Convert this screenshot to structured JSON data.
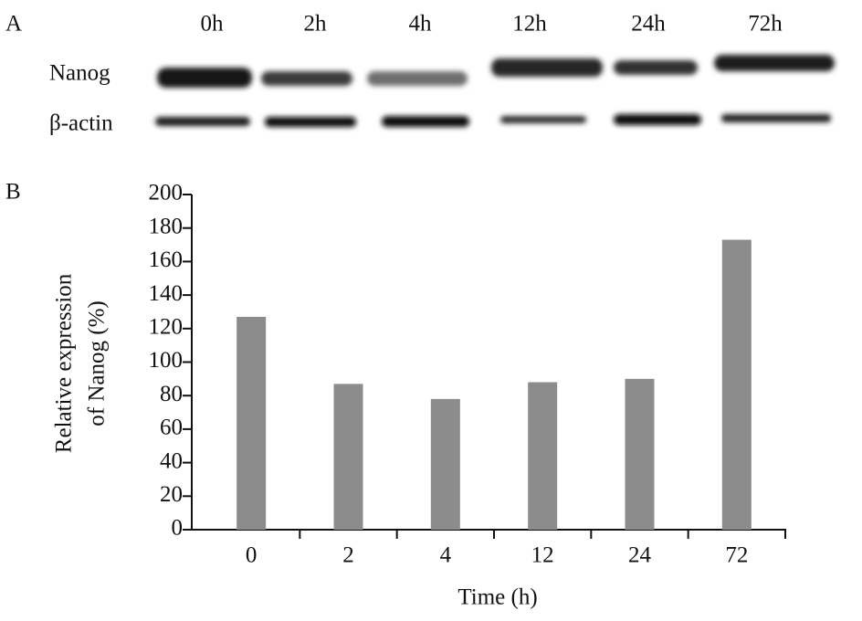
{
  "blot": {
    "panel_label": "A",
    "lanes": [
      "0h",
      "2h",
      "4h",
      "12h",
      "24h",
      "72h"
    ],
    "rows": [
      "Nanog",
      "β-actin"
    ]
  },
  "chart_data": {
    "type": "bar",
    "panel_label": "B",
    "categories": [
      "0",
      "2",
      "4",
      "12",
      "24",
      "72"
    ],
    "values": [
      127,
      87,
      78,
      88,
      90,
      173
    ],
    "color": "#8c8c8c",
    "ylim": [
      0,
      200
    ],
    "yticks": [
      0,
      20,
      40,
      60,
      80,
      100,
      120,
      140,
      160,
      180,
      200
    ],
    "x_label": "Time (h)",
    "y_label": [
      "Relative expression",
      "of  Nanog (%)"
    ]
  }
}
